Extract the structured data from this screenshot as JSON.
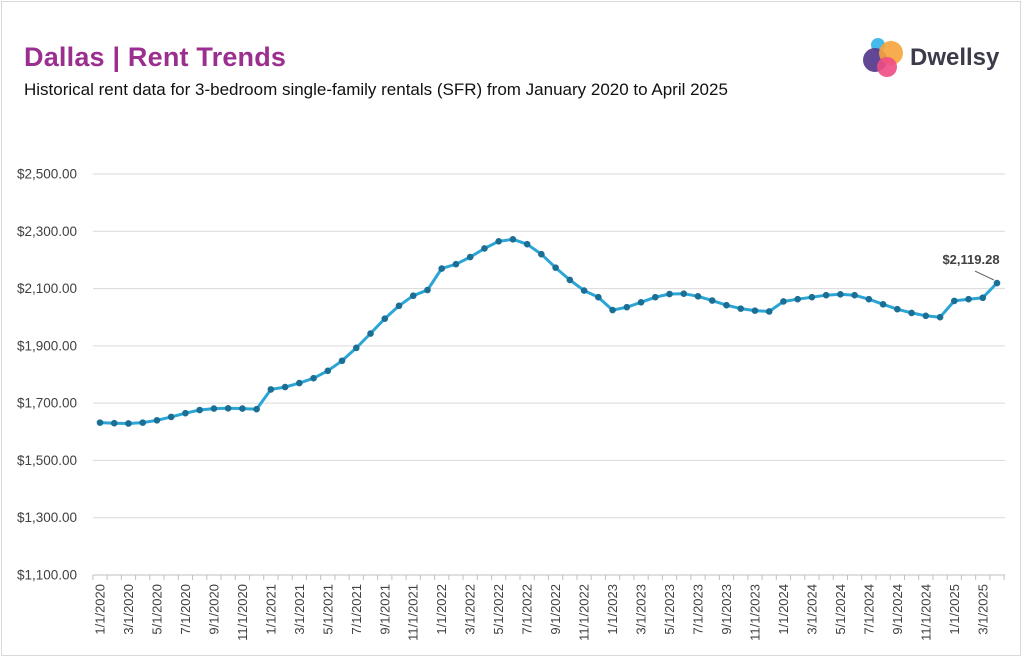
{
  "header": {
    "title": "Dallas | Rent Trends",
    "subtitle": "Historical rent data for 3-bedroom single-family rentals (SFR) from January 2020 to April 2025"
  },
  "brand": {
    "name": "Dwellsy",
    "colors": [
      "#3bb6ea",
      "#f6a33a",
      "#5a3d8f",
      "#ee4c84"
    ]
  },
  "colors": {
    "title": "#9b2f8f",
    "line": "#2aa5d6",
    "marker": "#1b6f94",
    "grid": "#d9d9d9"
  },
  "chart_data": {
    "type": "line",
    "title": "Dallas | Rent Trends",
    "xlabel": "",
    "ylabel": "",
    "ylim": [
      1100,
      2500
    ],
    "y_ticks": [
      "$1,100.00",
      "$1,300.00",
      "$1,500.00",
      "$1,700.00",
      "$1,900.00",
      "$2,100.00",
      "$2,300.00",
      "$2,500.00"
    ],
    "x_tick_labels": [
      "1/1/2020",
      "3/1/2020",
      "5/1/2020",
      "7/1/2020",
      "9/1/2020",
      "11/1/2020",
      "1/1/2021",
      "3/1/2021",
      "5/1/2021",
      "7/1/2021",
      "9/1/2021",
      "11/1/2021",
      "1/1/2022",
      "3/1/2022",
      "5/1/2022",
      "7/1/2022",
      "9/1/2022",
      "11/1/2022",
      "1/1/2023",
      "3/1/2023",
      "5/1/2023",
      "7/1/2023",
      "9/1/2023",
      "11/1/2023",
      "1/1/2024",
      "3/1/2024",
      "5/1/2024",
      "7/1/2024",
      "9/1/2024",
      "11/1/2024",
      "1/1/2025",
      "3/1/2025"
    ],
    "grid": true,
    "legend": "none",
    "x": [
      "2020-01",
      "2020-02",
      "2020-03",
      "2020-04",
      "2020-05",
      "2020-06",
      "2020-07",
      "2020-08",
      "2020-09",
      "2020-10",
      "2020-11",
      "2020-12",
      "2021-01",
      "2021-02",
      "2021-03",
      "2021-04",
      "2021-05",
      "2021-06",
      "2021-07",
      "2021-08",
      "2021-09",
      "2021-10",
      "2021-11",
      "2021-12",
      "2022-01",
      "2022-02",
      "2022-03",
      "2022-04",
      "2022-05",
      "2022-06",
      "2022-07",
      "2022-08",
      "2022-09",
      "2022-10",
      "2022-11",
      "2022-12",
      "2023-01",
      "2023-02",
      "2023-03",
      "2023-04",
      "2023-05",
      "2023-06",
      "2023-07",
      "2023-08",
      "2023-09",
      "2023-10",
      "2023-11",
      "2023-12",
      "2024-01",
      "2024-02",
      "2024-03",
      "2024-04",
      "2024-05",
      "2024-06",
      "2024-07",
      "2024-08",
      "2024-09",
      "2024-10",
      "2024-11",
      "2024-12",
      "2025-01",
      "2025-02",
      "2025-03",
      "2025-04"
    ],
    "series": [
      {
        "values": [
          1632,
          1630,
          1629,
          1632,
          1640,
          1652,
          1665,
          1676,
          1681,
          1682,
          1681,
          1679,
          1748,
          1756,
          1770,
          1787,
          1813,
          1848,
          1893,
          1943,
          1995,
          2040,
          2075,
          2095,
          2170,
          2185,
          2210,
          2240,
          2265,
          2272,
          2255,
          2220,
          2173,
          2130,
          2093,
          2070,
          2025,
          2035,
          2052,
          2070,
          2081,
          2082,
          2073,
          2058,
          2042,
          2030,
          2023,
          2020,
          2055,
          2063,
          2070,
          2077,
          2080,
          2077,
          2063,
          2045,
          2028,
          2015,
          2005,
          2000,
          2057,
          2063,
          2068,
          2119.28
        ]
      }
    ],
    "annotation": {
      "label": "$2,119.28"
    }
  }
}
